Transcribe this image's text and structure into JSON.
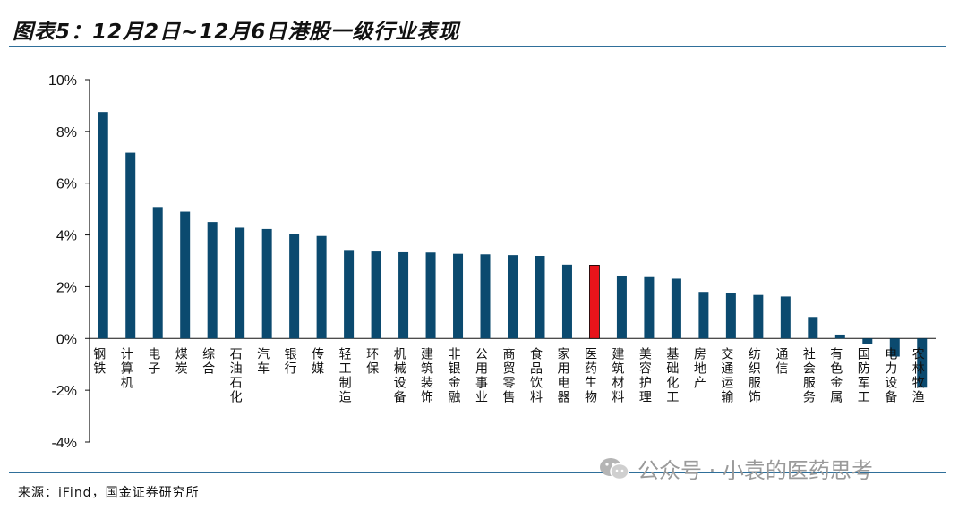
{
  "title": "图表5：12月2日~12月6日港股一级行业表现",
  "source": "来源：iFind，国金证券研究所",
  "watermark": "公众号 · 小袁的医药思考",
  "colors": {
    "bar": "#0b4a6f",
    "highlight": "#e8141b",
    "axis": "#111111",
    "rule": "#2f6f9a"
  },
  "chart_data": {
    "type": "bar",
    "categories": [
      "钢铁",
      "计算机",
      "电子",
      "煤炭",
      "综合",
      "石油石化",
      "汽车",
      "银行",
      "传媒",
      "轻工制造",
      "环保",
      "机械设备",
      "建筑装饰",
      "非银金融",
      "公用事业",
      "商贸零售",
      "食品饮料",
      "家用电器",
      "医药生物",
      "建筑材料",
      "美容护理",
      "基础化工",
      "房地产",
      "交通运输",
      "纺织服饰",
      "通信",
      "社会服务",
      "有色金属",
      "国防军工",
      "电力设备",
      "农林牧渔"
    ],
    "values": [
      8.75,
      7.18,
      5.08,
      4.9,
      4.5,
      4.28,
      4.23,
      4.04,
      3.96,
      3.42,
      3.36,
      3.33,
      3.32,
      3.27,
      3.25,
      3.22,
      3.19,
      2.85,
      2.83,
      2.43,
      2.37,
      2.31,
      1.8,
      1.77,
      1.68,
      1.62,
      0.83,
      0.15,
      -0.2,
      -0.7,
      -1.9
    ],
    "highlight_category": "医药生物",
    "ylim": [
      -4,
      10
    ],
    "yticks": [
      -4,
      -2,
      0,
      2,
      4,
      6,
      8,
      10
    ],
    "ytick_labels": [
      "-4%",
      "-2%",
      "0%",
      "2%",
      "4%",
      "6%",
      "8%",
      "10%"
    ],
    "grid": false,
    "legend": "none"
  }
}
